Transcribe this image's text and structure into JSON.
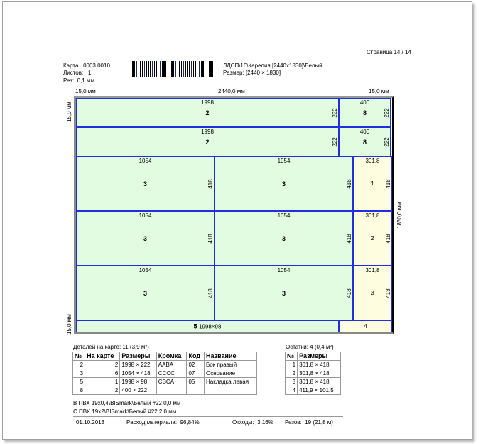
{
  "header": {
    "page": "Страница 14 / 14",
    "card_label": "Карта",
    "card_value": "0003.0010",
    "sheets_label": "Листов:",
    "sheets_value": "1",
    "cut_label": "Рез:",
    "cut_value": "0,1 мм",
    "material": "ЛДСП\\16\\Карелия  [2440x1830]\\Белый",
    "size": "Размер: [2440 × 1830]"
  },
  "dims": {
    "left_margin": "15,0 мм",
    "width": "2440,0 мм",
    "right_margin": "15,0 мм",
    "top_margin": "15,0 мм",
    "height": "1830,0 мм",
    "bottom_margin": "15,0 мм"
  },
  "pieces": [
    {
      "w": "1998",
      "n": "2",
      "h": "222"
    },
    {
      "w": "400",
      "n": "8",
      "h": "222"
    },
    {
      "w": "1998",
      "n": "2",
      "h": "222"
    },
    {
      "w": "400",
      "n": "8",
      "h": "222"
    },
    {
      "w": "1054",
      "n": "3",
      "h": "418"
    },
    {
      "w": "1054",
      "n": "3",
      "h": "418"
    },
    {
      "w": "301,8",
      "n": "1",
      "h": "418"
    },
    {
      "w": "1054",
      "n": "3",
      "h": "418"
    },
    {
      "w": "1054",
      "n": "3",
      "h": "418"
    },
    {
      "w": "301,8",
      "n": "2",
      "h": "418"
    },
    {
      "w": "1054",
      "n": "3",
      "h": "418"
    },
    {
      "w": "1054",
      "n": "3",
      "h": "418"
    },
    {
      "w": "301,8",
      "n": "3",
      "h": "418"
    },
    {
      "n": "5",
      "w": "1998×98"
    },
    {
      "n": "4"
    }
  ],
  "details": {
    "title": "Деталей на карте: 11 (3,9 м²)",
    "columns": [
      "№",
      "На карте",
      "Размеры",
      "Кромка",
      "Код",
      "Название"
    ],
    "rows": [
      [
        "2",
        "2",
        "1998 × 222",
        "AABA",
        "02",
        "Бок правый"
      ],
      [
        "3",
        "6",
        "1054 × 418",
        "CCCC",
        "07",
        "Основание"
      ],
      [
        "5",
        "1",
        "1998 × 98",
        "CBCA",
        "05",
        "Накладка левая"
      ],
      [
        "8",
        "2",
        "400 × 222",
        "",
        "",
        ""
      ]
    ]
  },
  "remnants": {
    "title": "Остатки: 4 (0,4 м²)",
    "columns": [
      "№",
      "Размеры"
    ],
    "rows": [
      [
        "1",
        "301,8 × 418"
      ],
      [
        "2",
        "301,8 × 418"
      ],
      [
        "3",
        "301,8 × 418"
      ],
      [
        "4",
        "411,9 × 101,5"
      ]
    ]
  },
  "edges": [
    "В ПВХ 19x0,4\\BISmark\\Белый #22 0,0 мм",
    "С ПВХ 19x2\\BISmark\\Белый #22 2,0 мм"
  ],
  "footer": {
    "date": "01.10.2013",
    "usage_label": "Расход материала:",
    "usage": "96,84%",
    "waste_label": "Отходы:",
    "waste": "3,16%",
    "cuts_label": "Резов:",
    "cuts": "19 (21,8 м)"
  }
}
